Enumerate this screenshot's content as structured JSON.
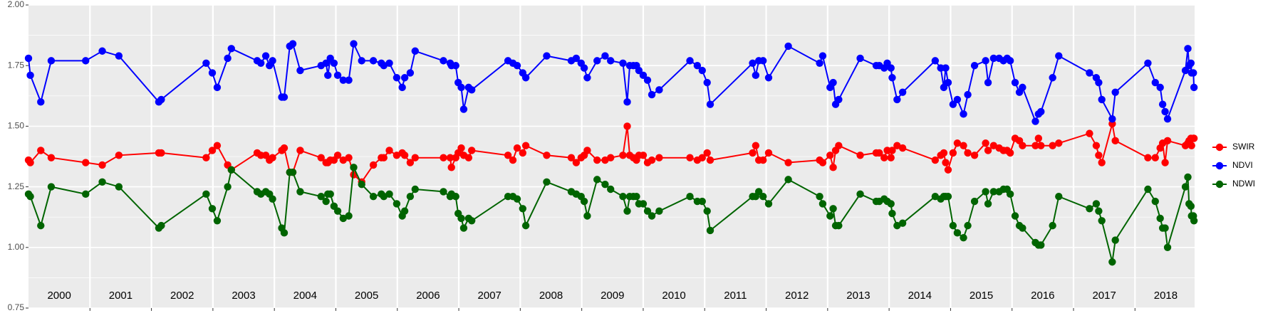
{
  "chart_data": {
    "type": "line",
    "xlim": [
      2000,
      2018.97
    ],
    "xticks": [
      2001,
      2002,
      2003,
      2004,
      2005,
      2006,
      2007,
      2008,
      2009,
      2010,
      2011,
      2012,
      2013,
      2014,
      2015,
      2016,
      2017,
      2018
    ],
    "ylim": [
      0.75,
      2.0
    ],
    "yticks": [
      {
        "value": 0.75,
        "label": "0.75"
      },
      {
        "value": 1.0,
        "label": "1.00"
      },
      {
        "value": 1.25,
        "label": "1.25"
      },
      {
        "value": 1.5,
        "label": "1.50"
      },
      {
        "value": 1.75,
        "label": "1.75"
      },
      {
        "value": 2.0,
        "label": "2.00"
      }
    ],
    "grid": true,
    "legend": "right",
    "year_labels": [
      "2000",
      "2001",
      "2002",
      "2003",
      "2004",
      "2005",
      "2006",
      "2007",
      "2008",
      "2009",
      "2010",
      "2011",
      "2012",
      "2013",
      "2014",
      "2015",
      "2016",
      "2017",
      "2018"
    ],
    "x": [
      2000.0,
      2000.03,
      2000.2,
      2000.37,
      2000.93,
      2001.2,
      2001.47,
      2002.12,
      2002.16,
      2002.89,
      2002.99,
      2003.07,
      2003.24,
      2003.3,
      2003.72,
      2003.78,
      2003.86,
      2003.92,
      2003.97,
      2004.12,
      2004.16,
      2004.25,
      2004.3,
      2004.42,
      2004.76,
      2004.84,
      2004.87,
      2004.91,
      2004.97,
      2005.03,
      2005.12,
      2005.21,
      2005.29,
      2005.42,
      2005.61,
      2005.74,
      2005.78,
      2005.87,
      2005.99,
      2006.08,
      2006.12,
      2006.21,
      2006.29,
      2006.75,
      2006.86,
      2006.88,
      2006.95,
      2006.99,
      2007.04,
      2007.08,
      2007.16,
      2007.21,
      2007.8,
      2007.88,
      2007.95,
      2008.04,
      2008.09,
      2008.43,
      2008.83,
      2008.91,
      2008.99,
      2009.04,
      2009.09,
      2009.25,
      2009.38,
      2009.47,
      2009.67,
      2009.74,
      2009.78,
      2009.84,
      2009.89,
      2009.93,
      2010.0,
      2010.07,
      2010.14,
      2010.26,
      2010.76,
      2010.88,
      2010.96,
      2011.04,
      2011.09,
      2011.78,
      2011.83,
      2011.88,
      2011.95,
      2012.04,
      2012.36,
      2012.87,
      2012.92,
      2013.04,
      2013.09,
      2013.13,
      2013.18,
      2013.53,
      2013.79,
      2013.84,
      2013.92,
      2013.97,
      2014.03,
      2014.05,
      2014.13,
      2014.22,
      2014.75,
      2014.84,
      2014.89,
      2014.92,
      2014.96,
      2015.04,
      2015.11,
      2015.21,
      2015.28,
      2015.39,
      2015.57,
      2015.61,
      2015.7,
      2015.79,
      2015.86,
      2015.92,
      2015.97,
      2016.05,
      2016.12,
      2016.17,
      2016.38,
      2016.43,
      2016.47,
      2016.66,
      2016.76,
      2017.26,
      2017.37,
      2017.41,
      2017.46,
      2017.63,
      2017.68,
      2018.21,
      2018.33,
      2018.41,
      2018.45,
      2018.49,
      2018.53,
      2018.82,
      2018.86,
      2018.88,
      2018.91,
      2018.92,
      2018.95,
      2018.96
    ],
    "series": [
      {
        "name": "SWIR",
        "color": "#ff0000",
        "values": [
          1.36,
          1.35,
          1.4,
          1.37,
          1.35,
          1.34,
          1.38,
          1.39,
          1.39,
          1.37,
          1.4,
          1.42,
          1.34,
          1.32,
          1.39,
          1.38,
          1.38,
          1.36,
          1.37,
          1.4,
          1.41,
          1.31,
          1.31,
          1.4,
          1.37,
          1.35,
          1.35,
          1.36,
          1.36,
          1.38,
          1.36,
          1.37,
          1.3,
          1.27,
          1.34,
          1.37,
          1.37,
          1.4,
          1.38,
          1.39,
          1.38,
          1.35,
          1.37,
          1.37,
          1.37,
          1.33,
          1.37,
          1.39,
          1.41,
          1.38,
          1.37,
          1.4,
          1.38,
          1.36,
          1.41,
          1.39,
          1.42,
          1.38,
          1.37,
          1.35,
          1.37,
          1.38,
          1.4,
          1.36,
          1.36,
          1.37,
          1.38,
          1.5,
          1.38,
          1.37,
          1.36,
          1.38,
          1.38,
          1.35,
          1.36,
          1.37,
          1.37,
          1.36,
          1.37,
          1.39,
          1.36,
          1.39,
          1.42,
          1.36,
          1.36,
          1.39,
          1.35,
          1.36,
          1.35,
          1.38,
          1.33,
          1.4,
          1.42,
          1.38,
          1.39,
          1.39,
          1.37,
          1.4,
          1.37,
          1.4,
          1.42,
          1.41,
          1.36,
          1.38,
          1.39,
          1.35,
          1.32,
          1.39,
          1.43,
          1.42,
          1.39,
          1.38,
          1.43,
          1.4,
          1.42,
          1.41,
          1.4,
          1.4,
          1.39,
          1.45,
          1.44,
          1.42,
          1.42,
          1.45,
          1.42,
          1.42,
          1.43,
          1.47,
          1.42,
          1.38,
          1.35,
          1.51,
          1.44,
          1.37,
          1.37,
          1.41,
          1.43,
          1.35,
          1.44,
          1.42,
          1.43,
          1.44,
          1.45,
          1.42,
          1.45,
          1.45
        ]
      },
      {
        "name": "NDVI",
        "color": "#0000ff",
        "values": [
          1.78,
          1.71,
          1.6,
          1.77,
          1.77,
          1.81,
          1.79,
          1.6,
          1.61,
          1.76,
          1.72,
          1.66,
          1.78,
          1.82,
          1.77,
          1.76,
          1.79,
          1.75,
          1.77,
          1.62,
          1.62,
          1.83,
          1.84,
          1.73,
          1.75,
          1.76,
          1.71,
          1.78,
          1.76,
          1.71,
          1.69,
          1.69,
          1.84,
          1.77,
          1.77,
          1.76,
          1.75,
          1.76,
          1.7,
          1.66,
          1.7,
          1.72,
          1.81,
          1.77,
          1.76,
          1.75,
          1.75,
          1.68,
          1.66,
          1.57,
          1.66,
          1.65,
          1.77,
          1.76,
          1.75,
          1.72,
          1.7,
          1.79,
          1.77,
          1.78,
          1.76,
          1.74,
          1.7,
          1.77,
          1.79,
          1.77,
          1.76,
          1.6,
          1.75,
          1.75,
          1.75,
          1.73,
          1.71,
          1.69,
          1.63,
          1.65,
          1.77,
          1.75,
          1.73,
          1.68,
          1.59,
          1.76,
          1.71,
          1.77,
          1.77,
          1.7,
          1.83,
          1.76,
          1.79,
          1.66,
          1.68,
          1.59,
          1.61,
          1.78,
          1.75,
          1.75,
          1.74,
          1.76,
          1.74,
          1.7,
          1.61,
          1.64,
          1.77,
          1.74,
          1.66,
          1.74,
          1.68,
          1.59,
          1.61,
          1.55,
          1.63,
          1.75,
          1.77,
          1.68,
          1.78,
          1.78,
          1.77,
          1.78,
          1.77,
          1.68,
          1.64,
          1.66,
          1.52,
          1.55,
          1.56,
          1.7,
          1.79,
          1.72,
          1.7,
          1.68,
          1.61,
          1.53,
          1.64,
          1.76,
          1.68,
          1.66,
          1.59,
          1.56,
          1.53,
          1.73,
          1.82,
          1.75,
          1.76,
          1.72,
          1.72,
          1.66
        ]
      },
      {
        "name": "NDWI",
        "color": "#006400",
        "values": [
          1.22,
          1.21,
          1.09,
          1.25,
          1.22,
          1.27,
          1.25,
          1.08,
          1.09,
          1.22,
          1.16,
          1.11,
          1.25,
          1.32,
          1.23,
          1.22,
          1.23,
          1.22,
          1.2,
          1.08,
          1.06,
          1.31,
          1.31,
          1.23,
          1.21,
          1.19,
          1.22,
          1.22,
          1.17,
          1.15,
          1.12,
          1.13,
          1.33,
          1.26,
          1.21,
          1.22,
          1.21,
          1.22,
          1.18,
          1.13,
          1.15,
          1.21,
          1.24,
          1.23,
          1.21,
          1.22,
          1.21,
          1.14,
          1.12,
          1.08,
          1.12,
          1.11,
          1.21,
          1.21,
          1.2,
          1.16,
          1.09,
          1.27,
          1.23,
          1.22,
          1.21,
          1.19,
          1.13,
          1.28,
          1.26,
          1.24,
          1.21,
          1.15,
          1.21,
          1.21,
          1.21,
          1.18,
          1.18,
          1.15,
          1.13,
          1.15,
          1.21,
          1.19,
          1.19,
          1.15,
          1.07,
          1.21,
          1.21,
          1.23,
          1.21,
          1.18,
          1.28,
          1.21,
          1.18,
          1.13,
          1.16,
          1.09,
          1.09,
          1.22,
          1.19,
          1.19,
          1.2,
          1.19,
          1.18,
          1.14,
          1.09,
          1.1,
          1.21,
          1.2,
          1.21,
          1.21,
          1.21,
          1.09,
          1.06,
          1.04,
          1.09,
          1.19,
          1.23,
          1.18,
          1.23,
          1.23,
          1.24,
          1.24,
          1.22,
          1.13,
          1.09,
          1.08,
          1.02,
          1.01,
          1.01,
          1.09,
          1.21,
          1.16,
          1.18,
          1.15,
          1.11,
          0.94,
          1.03,
          1.24,
          1.19,
          1.12,
          1.08,
          1.08,
          1.0,
          1.25,
          1.29,
          1.18,
          1.17,
          1.13,
          1.13,
          1.11
        ]
      }
    ]
  }
}
